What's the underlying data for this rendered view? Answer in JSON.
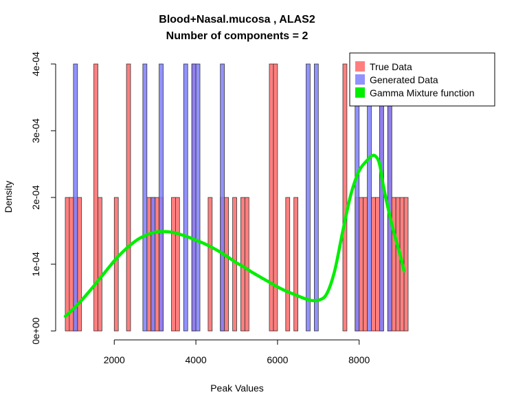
{
  "chart_data": {
    "type": "bar",
    "title": "Blood+Nasal.mucosa , ALAS2",
    "subtitle": "Number of components =  2",
    "xlabel": "Peak Values",
    "ylabel": "Density",
    "xlim": [
      800,
      9200
    ],
    "ylim": [
      0,
      0.0004
    ],
    "x_ticks": [
      2000,
      4000,
      6000,
      8000
    ],
    "x_tick_labels": [
      "2000",
      "4000",
      "6000",
      "8000"
    ],
    "y_ticks": [
      0,
      0.0001,
      0.0002,
      0.0003,
      0.0004
    ],
    "y_tick_labels": [
      "0e+00",
      "1e-04",
      "2e-04",
      "3e-04",
      "4e-04"
    ],
    "bin_width": 100,
    "legend_position": "top-right",
    "series": [
      {
        "name": "True Data",
        "kind": "histogram",
        "color": "#ff7f7f",
        "bins": [
          [
            800,
            0.0002
          ],
          [
            900,
            0.0002
          ],
          [
            1000,
            0.0002
          ],
          [
            1100,
            0.0002
          ],
          [
            1500,
            0.0004
          ],
          [
            1600,
            0.0002
          ],
          [
            2000,
            0.0002
          ],
          [
            2300,
            0.0004
          ],
          [
            2800,
            0.0002
          ],
          [
            2900,
            0.0002
          ],
          [
            3000,
            0.0002
          ],
          [
            3100,
            0.0002
          ],
          [
            3400,
            0.0002
          ],
          [
            3500,
            0.0002
          ],
          [
            3900,
            0.0004
          ],
          [
            4300,
            0.0002
          ],
          [
            4600,
            0.0002
          ],
          [
            4700,
            0.0002
          ],
          [
            4900,
            0.0002
          ],
          [
            5100,
            0.0002
          ],
          [
            5200,
            0.0002
          ],
          [
            5800,
            0.0004
          ],
          [
            5900,
            0.0004
          ],
          [
            6200,
            0.0002
          ],
          [
            6400,
            0.0002
          ],
          [
            7600,
            0.0004
          ],
          [
            7900,
            0.0002
          ],
          [
            8000,
            0.0002
          ],
          [
            8100,
            0.0002
          ],
          [
            8300,
            0.0002
          ],
          [
            8400,
            0.0002
          ],
          [
            8500,
            0.0004
          ],
          [
            8700,
            0.0004
          ],
          [
            8800,
            0.0002
          ],
          [
            8900,
            0.0002
          ],
          [
            9000,
            0.0002
          ],
          [
            9100,
            0.0002
          ]
        ]
      },
      {
        "name": "Generated Data",
        "kind": "histogram",
        "color": "#7f7fff",
        "bins": [
          [
            1000,
            0.0004
          ],
          [
            2700,
            0.0004
          ],
          [
            2900,
            0.0002
          ],
          [
            3100,
            0.0004
          ],
          [
            3700,
            0.0004
          ],
          [
            3900,
            0.0004
          ],
          [
            4000,
            0.0004
          ],
          [
            4600,
            0.0004
          ],
          [
            6700,
            0.0004
          ],
          [
            6900,
            0.0004
          ],
          [
            7900,
            0.0004
          ],
          [
            8200,
            0.0004
          ],
          [
            8500,
            0.0004
          ],
          [
            8700,
            0.0004
          ]
        ]
      },
      {
        "name": "Gamma Mixture function",
        "kind": "line",
        "color": "#00ee00",
        "x": [
          800,
          1000,
          1200,
          1400,
          1600,
          1800,
          2000,
          2200,
          2400,
          2600,
          2800,
          3000,
          3200,
          3400,
          3600,
          3800,
          4000,
          4200,
          4400,
          4600,
          4800,
          5000,
          5200,
          5400,
          5600,
          5800,
          6000,
          6200,
          6400,
          6600,
          6800,
          7000,
          7200,
          7400,
          7600,
          7800,
          8000,
          8200,
          8300,
          8400,
          8500,
          8600,
          8800,
          9000,
          9100
        ],
        "y": [
          2.2e-05,
          3.3e-05,
          4.6e-05,
          6e-05,
          7.5e-05,
          9e-05,
          0.000105,
          0.000118,
          0.000129,
          0.000138,
          0.000144,
          0.000148,
          0.000149,
          0.000148,
          0.000145,
          0.000141,
          0.000136,
          0.000131,
          0.000125,
          0.000118,
          0.00011,
          0.000102,
          9.5e-05,
          8.7e-05,
          8e-05,
          7.3e-05,
          6.6e-05,
          6e-05,
          5.5e-05,
          5e-05,
          4.6e-05,
          4.6e-05,
          5.5e-05,
          9e-05,
          0.00015,
          0.000205,
          0.00024,
          0.000256,
          0.000262,
          0.000262,
          0.00025,
          0.000215,
          0.00016,
          0.000115,
          9e-05
        ]
      }
    ]
  }
}
